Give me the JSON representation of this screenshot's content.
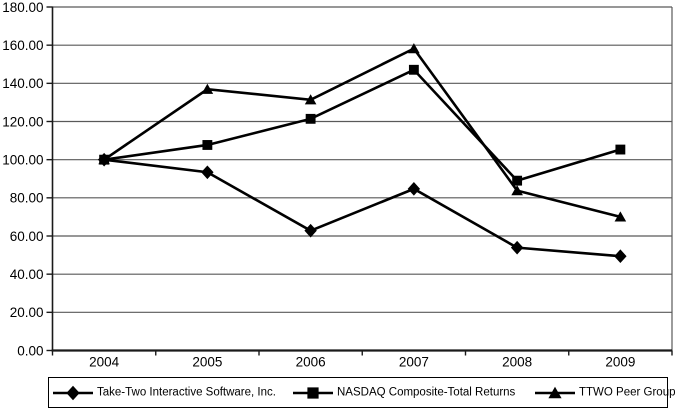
{
  "chart_data": {
    "type": "line",
    "categories": [
      "2004",
      "2005",
      "2006",
      "2007",
      "2008",
      "2009"
    ],
    "y_ticks": [
      "0.00",
      "20.00",
      "40.00",
      "60.00",
      "80.00",
      "100.00",
      "120.00",
      "140.00",
      "160.00",
      "180.00"
    ],
    "ylim": [
      0,
      180
    ],
    "grid": true,
    "legend_position": "bottom",
    "line_color": "#000000",
    "grid_color": "#595959",
    "axis_color": "#1a1a1a",
    "series": [
      {
        "name": "Take-Two Interactive Software, Inc.",
        "marker": "diamond",
        "values": [
          100.0,
          93.4,
          62.8,
          84.7,
          53.9,
          49.4
        ]
      },
      {
        "name": "NASDAQ Composite-Total Returns",
        "marker": "square",
        "values": [
          100.0,
          107.7,
          121.4,
          147.1,
          89.0,
          105.3
        ]
      },
      {
        "name": "TTWO Peer Group",
        "marker": "triangle",
        "values": [
          100.0,
          136.9,
          131.4,
          158.2,
          83.8,
          70.0
        ]
      }
    ],
    "draw_order": [
      0,
      2,
      1
    ]
  }
}
